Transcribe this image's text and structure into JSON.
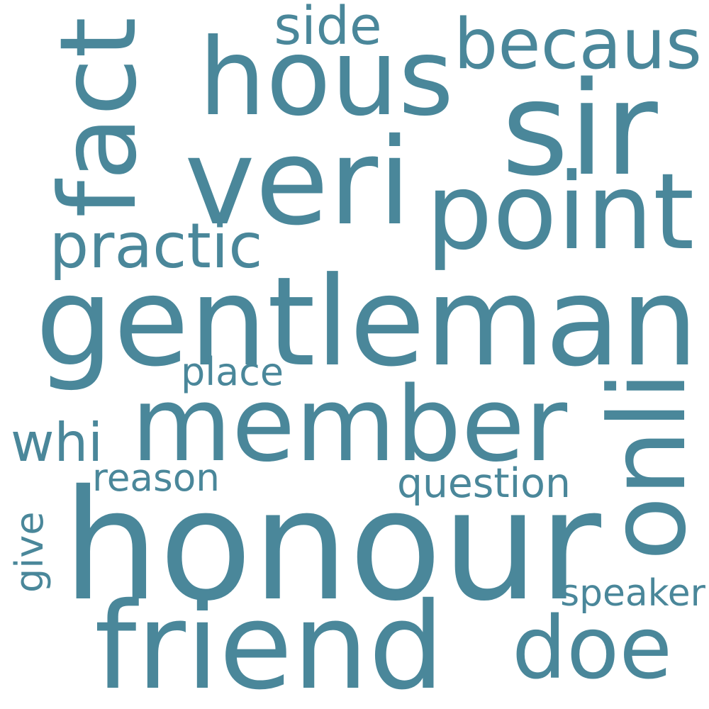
{
  "theme": {
    "text_color": "#4a879a",
    "background": "#ffffff"
  },
  "words": [
    {
      "id": "honour",
      "text": "honour",
      "orientation": "horizontal"
    },
    {
      "id": "gentleman",
      "text": "gentleman",
      "orientation": "horizontal"
    },
    {
      "id": "member",
      "text": "member",
      "orientation": "horizontal"
    },
    {
      "id": "hous",
      "text": "hous",
      "orientation": "horizontal"
    },
    {
      "id": "sir",
      "text": "sir",
      "orientation": "horizontal"
    },
    {
      "id": "veri",
      "text": "veri",
      "orientation": "horizontal"
    },
    {
      "id": "point",
      "text": "point",
      "orientation": "horizontal"
    },
    {
      "id": "friend",
      "text": "friend",
      "orientation": "horizontal"
    },
    {
      "id": "doe",
      "text": "doe",
      "orientation": "horizontal"
    },
    {
      "id": "fact",
      "text": "fact",
      "orientation": "vertical"
    },
    {
      "id": "onli",
      "text": "onli",
      "orientation": "vertical"
    },
    {
      "id": "becaus",
      "text": "becaus",
      "orientation": "horizontal"
    },
    {
      "id": "practic",
      "text": "practic",
      "orientation": "horizontal"
    },
    {
      "id": "side",
      "text": "side",
      "orientation": "horizontal"
    },
    {
      "id": "whi",
      "text": "whi",
      "orientation": "horizontal"
    },
    {
      "id": "question",
      "text": "question",
      "orientation": "horizontal"
    },
    {
      "id": "speaker",
      "text": "speaker",
      "orientation": "horizontal"
    },
    {
      "id": "place",
      "text": "place",
      "orientation": "horizontal"
    },
    {
      "id": "reason",
      "text": "reason",
      "orientation": "horizontal"
    },
    {
      "id": "give",
      "text": "give",
      "orientation": "vertical"
    }
  ]
}
